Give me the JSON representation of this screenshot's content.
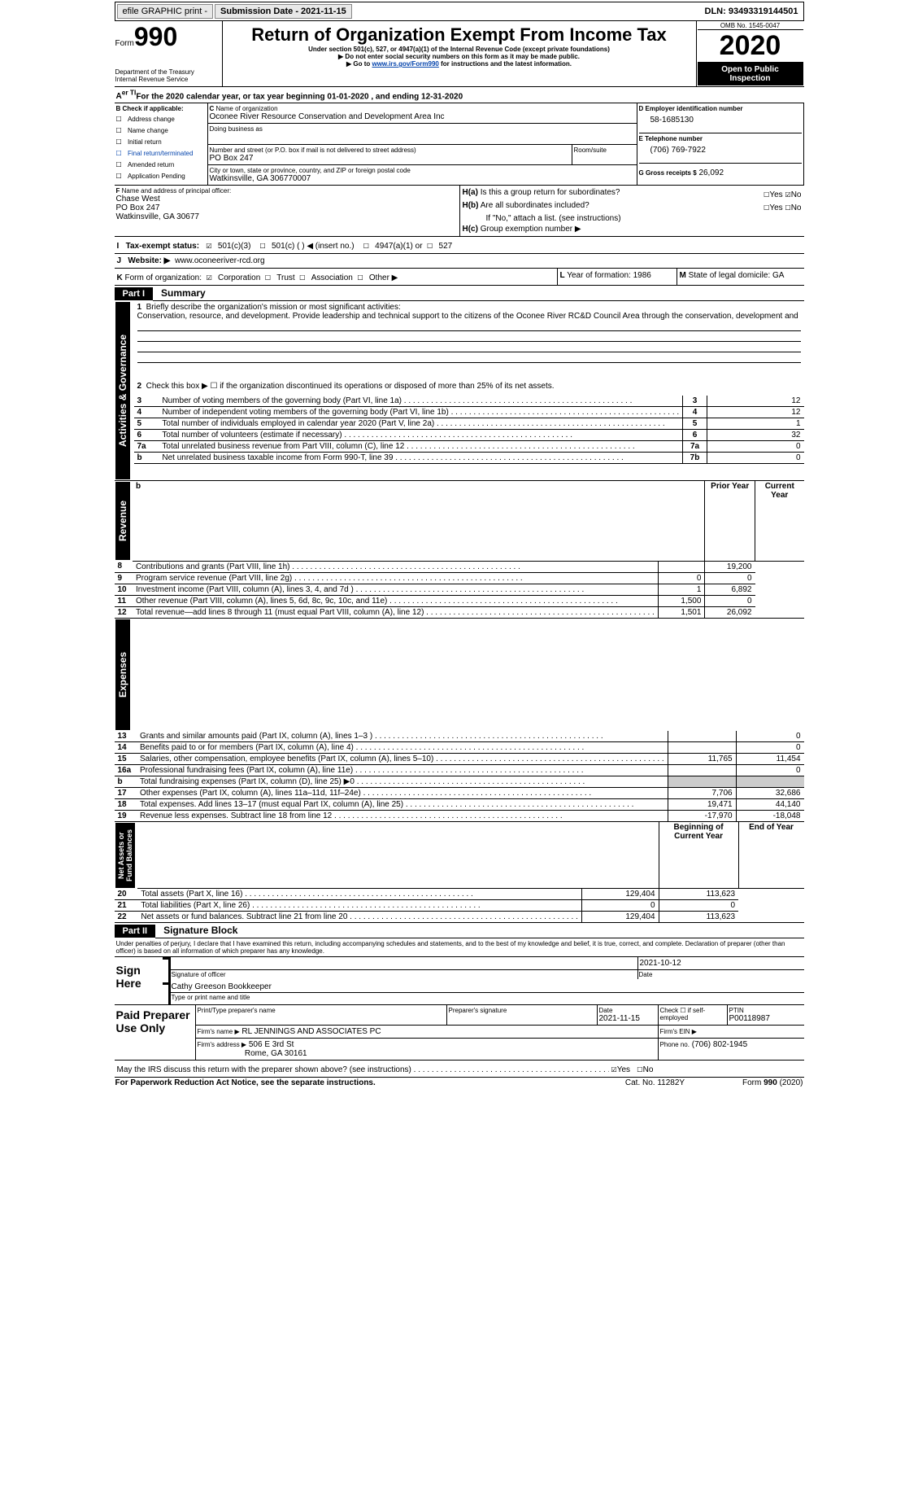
{
  "topbar": {
    "efile": "efile GRAPHIC print -",
    "sub": "Submission Date - 2021-11-15",
    "dln": "DLN: 93493319144501"
  },
  "hdr": {
    "form_word": "Form",
    "form_no": "990",
    "title": "Return of Organization Exempt From Income Tax",
    "sub1": "Under section 501(c), 527, or 4947(a)(1) of the Internal Revenue Code (except private foundations)",
    "sub2": "▶ Do not enter social security numbers on this form as it may be made public.",
    "sub3_pre": "▶ Go to ",
    "sub3_link": "www.irs.gov/Form990",
    "sub3_post": " for instructions and the latest information.",
    "dept": "Department of the Treasury\nInternal Revenue Service",
    "omb": "OMB No. 1545-0047",
    "year": "2020",
    "open": "Open to Public Inspection"
  },
  "A": {
    "text": "For the 2020 calendar year, or tax year beginning 01-01-2020   , and ending 12-31-2020"
  },
  "B": {
    "label": "Check if applicable:",
    "items": [
      "Address change",
      "Name change",
      "Initial return",
      "Final return/terminated",
      "Amended return",
      "Application Pending"
    ]
  },
  "C": {
    "name_lbl": "Name of organization",
    "name": "Oconee River Resource Conservation and Development Area Inc",
    "dba_lbl": "Doing business as",
    "dba": "",
    "street_lbl": "Number and street (or P.O. box if mail is not delivered to street address)",
    "room_lbl": "Room/suite",
    "street": "PO Box 247",
    "city_lbl": "City or town, state or province, country, and ZIP or foreign postal code",
    "city": "Watkinsville, GA  306770007"
  },
  "D": {
    "lbl": "Employer identification number",
    "val": "58-1685130"
  },
  "E": {
    "lbl": "Telephone number",
    "val": "(706) 769-7922"
  },
  "G": {
    "lbl": "Gross receipts $",
    "val": "26,092"
  },
  "F": {
    "lbl": "Name and address of principal officer:",
    "name": "Chase West",
    "addr1": "PO Box 247",
    "addr2": "Watkinsville, GA  30677"
  },
  "H": {
    "a": "Is this a group return for subordinates?",
    "a_yes": "Yes",
    "a_no": "No",
    "b": "Are all subordinates included?",
    "b_yes": "Yes",
    "b_no": "No",
    "b_note": "If \"No,\" attach a list. (see instructions)",
    "c": "Group exemption number ▶"
  },
  "I": {
    "lbl": "Tax-exempt status:",
    "opts": [
      "501(c)(3)",
      "501(c) (  ) ◀ (insert no.)",
      "4947(a)(1) or",
      "527"
    ]
  },
  "J": {
    "lbl": "Website: ▶",
    "val": "www.oconeeriver-rcd.org"
  },
  "K": {
    "lbl": "Form of organization:",
    "opts": [
      "Corporation",
      "Trust",
      "Association",
      "Other ▶"
    ]
  },
  "L": {
    "lbl": "Year of formation:",
    "val": "1986"
  },
  "M": {
    "lbl": "State of legal domicile:",
    "val": "GA"
  },
  "p1": {
    "num": "Part I",
    "title": "Summary",
    "q1_lbl": "1",
    "q1": "Briefly describe the organization's mission or most significant activities:",
    "q1_text": "Conservation, resource, and development. Provide leadership and technical support to the citizens of the Oconee River RC&D Council Area through the conservation, development and",
    "q2_lbl": "2",
    "q2": "Check this box ▶ ☐  if the organization discontinued its operations or disposed of more than 25% of its net assets.",
    "rows_top": [
      {
        "n": "3",
        "t": "Number of voting members of the governing body (Part VI, line 1a)",
        "box": "3",
        "v": "12"
      },
      {
        "n": "4",
        "t": "Number of independent voting members of the governing body (Part VI, line 1b)",
        "box": "4",
        "v": "12"
      },
      {
        "n": "5",
        "t": "Total number of individuals employed in calendar year 2020 (Part V, line 2a)",
        "box": "5",
        "v": "1"
      },
      {
        "n": "6",
        "t": "Total number of volunteers (estimate if necessary)",
        "box": "6",
        "v": "32"
      },
      {
        "n": "7a",
        "t": "Total unrelated business revenue from Part VIII, column (C), line 12",
        "box": "7a",
        "v": "0"
      },
      {
        "n": "b",
        "t": "Net unrelated business taxable income from Form 990-T, line 39",
        "box": "7b",
        "v": "0"
      }
    ],
    "col_prior": "Prior Year",
    "col_curr": "Current Year",
    "rev": [
      {
        "n": "8",
        "t": "Contributions and grants (Part VIII, line 1h)",
        "p": "",
        "c": "19,200"
      },
      {
        "n": "9",
        "t": "Program service revenue (Part VIII, line 2g)",
        "p": "0",
        "c": "0"
      },
      {
        "n": "10",
        "t": "Investment income (Part VIII, column (A), lines 3, 4, and 7d )",
        "p": "1",
        "c": "6,892"
      },
      {
        "n": "11",
        "t": "Other revenue (Part VIII, column (A), lines 5, 6d, 8c, 9c, 10c, and 11e)",
        "p": "1,500",
        "c": "0"
      },
      {
        "n": "12",
        "t": "Total revenue—add lines 8 through 11 (must equal Part VIII, column (A), line 12)",
        "p": "1,501",
        "c": "26,092"
      }
    ],
    "exp": [
      {
        "n": "13",
        "t": "Grants and similar amounts paid (Part IX, column (A), lines 1–3 )",
        "p": "",
        "c": "0"
      },
      {
        "n": "14",
        "t": "Benefits paid to or for members (Part IX, column (A), line 4)",
        "p": "",
        "c": "0"
      },
      {
        "n": "15",
        "t": "Salaries, other compensation, employee benefits (Part IX, column (A), lines 5–10)",
        "p": "11,765",
        "c": "11,454"
      },
      {
        "n": "16a",
        "t": "Professional fundraising fees (Part IX, column (A), line 11e)",
        "p": "",
        "c": "0"
      },
      {
        "n": "b",
        "t": "Total fundraising expenses (Part IX, column (D), line 25) ▶0",
        "p": "GREY",
        "c": "GREY"
      },
      {
        "n": "17",
        "t": "Other expenses (Part IX, column (A), lines 11a–11d, 11f–24e)",
        "p": "7,706",
        "c": "32,686"
      },
      {
        "n": "18",
        "t": "Total expenses. Add lines 13–17 (must equal Part IX, column (A), line 25)",
        "p": "19,471",
        "c": "44,140"
      },
      {
        "n": "19",
        "t": "Revenue less expenses. Subtract line 18 from line 12",
        "p": "-17,970",
        "c": "-18,048"
      }
    ],
    "na_hdr_p": "Beginning of Current Year",
    "na_hdr_c": "End of Year",
    "na": [
      {
        "n": "20",
        "t": "Total assets (Part X, line 16)",
        "p": "129,404",
        "c": "113,623"
      },
      {
        "n": "21",
        "t": "Total liabilities (Part X, line 26)",
        "p": "0",
        "c": "0"
      },
      {
        "n": "22",
        "t": "Net assets or fund balances. Subtract line 21 from line 20",
        "p": "129,404",
        "c": "113,623"
      }
    ],
    "side_ag": "Activities & Governance",
    "side_rev": "Revenue",
    "side_exp": "Expenses",
    "side_na": "Net Assets or\nFund Balances"
  },
  "p2": {
    "num": "Part II",
    "title": "Signature Block",
    "decl": "Under penalties of perjury, I declare that I have examined this return, including accompanying schedules and statements, and to the best of my knowledge and belief, it is true, correct, and complete. Declaration of preparer (other than officer) is based on all information of which preparer has any knowledge.",
    "sign_here": "Sign Here",
    "sig_lbl": "Signature of officer",
    "date_lbl": "Date",
    "sig_date": "2021-10-12",
    "printed": "Cathy Greeson  Bookkeeper",
    "printed_lbl": "Type or print name and title",
    "paid": "Paid Preparer Use Only",
    "pp_name_lbl": "Print/Type preparer's name",
    "pp_sig_lbl": "Preparer's signature",
    "pp_date_lbl": "Date",
    "pp_date": "2021-11-15",
    "pp_self_lbl": "Check ☐ if self-employed",
    "pp_ptin_lbl": "PTIN",
    "pp_ptin": "P00118987",
    "firm_name_lbl": "Firm's name   ▶",
    "firm_name": "RL JENNINGS AND ASSOCIATES PC",
    "firm_ein_lbl": "Firm's EIN ▶",
    "firm_addr_lbl": "Firm's address ▶",
    "firm_addr1": "506 E 3rd St",
    "firm_addr2": "Rome, GA  30161",
    "firm_phone_lbl": "Phone no.",
    "firm_phone": "(706) 802-1945",
    "irs_q": "May the IRS discuss this return with the preparer shown above? (see instructions)",
    "irs_yes": "Yes",
    "irs_no": "No"
  },
  "footer": {
    "pra": "For Paperwork Reduction Act Notice, see the separate instructions.",
    "cat": "Cat. No. 11282Y",
    "form": "Form 990 (2020)"
  }
}
